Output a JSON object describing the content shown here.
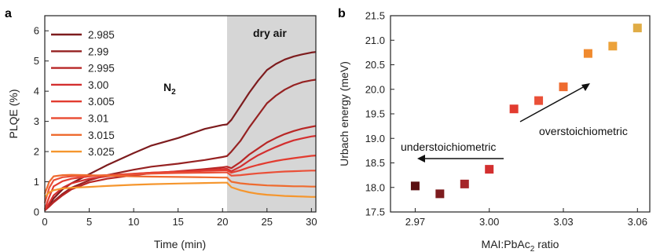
{
  "chart_data": [
    {
      "panel": "a",
      "type": "line",
      "xlabel": "Time (min)",
      "ylabel": "PLQE (%)",
      "xlim": [
        0,
        30.5
      ],
      "ylim": [
        0,
        6.5
      ],
      "xticks": [
        0,
        5,
        10,
        15,
        20,
        25,
        30
      ],
      "yticks": [
        0,
        1,
        2,
        3,
        4,
        5,
        6
      ],
      "shaded_region": {
        "x": [
          20.5,
          30.5
        ],
        "label": "dry air"
      },
      "annotations": [
        {
          "text": "N",
          "sub": "2"
        }
      ],
      "legend_position": "top-left",
      "x": [
        0,
        0.5,
        1,
        2,
        3,
        5,
        7,
        10,
        12,
        15,
        18,
        20,
        20.5,
        21,
        22,
        23,
        24,
        25,
        26,
        27,
        28,
        29,
        30,
        30.5
      ],
      "series": [
        {
          "name": "2.985",
          "color": "#7d1c1e",
          "values": [
            0.05,
            0.25,
            0.45,
            0.75,
            0.95,
            1.25,
            1.55,
            1.95,
            2.2,
            2.45,
            2.75,
            2.88,
            2.9,
            3.05,
            3.5,
            3.95,
            4.35,
            4.7,
            4.9,
            5.05,
            5.15,
            5.22,
            5.28,
            5.3
          ]
        },
        {
          "name": "2.99",
          "color": "#962222",
          "values": [
            0.05,
            0.2,
            0.35,
            0.6,
            0.8,
            1.05,
            1.22,
            1.4,
            1.5,
            1.6,
            1.72,
            1.82,
            1.85,
            2.0,
            2.35,
            2.8,
            3.2,
            3.6,
            3.85,
            4.05,
            4.2,
            4.3,
            4.36,
            4.38
          ]
        },
        {
          "name": "2.995",
          "color": "#b82726",
          "values": [
            0.05,
            0.18,
            0.32,
            0.55,
            0.75,
            0.98,
            1.1,
            1.22,
            1.28,
            1.35,
            1.42,
            1.48,
            1.5,
            1.45,
            1.65,
            1.9,
            2.1,
            2.3,
            2.45,
            2.58,
            2.68,
            2.76,
            2.82,
            2.85
          ]
        },
        {
          "name": "3.00",
          "color": "#d32f2f",
          "values": [
            0.05,
            0.3,
            0.55,
            0.8,
            0.95,
            1.1,
            1.18,
            1.26,
            1.3,
            1.34,
            1.38,
            1.42,
            1.43,
            1.35,
            1.5,
            1.7,
            1.88,
            2.02,
            2.15,
            2.27,
            2.37,
            2.44,
            2.5,
            2.52
          ]
        },
        {
          "name": "3.005",
          "color": "#e23b2f",
          "values": [
            0.1,
            0.5,
            0.85,
            1.02,
            1.1,
            1.18,
            1.22,
            1.27,
            1.3,
            1.33,
            1.36,
            1.38,
            1.38,
            1.3,
            1.38,
            1.48,
            1.56,
            1.63,
            1.69,
            1.74,
            1.78,
            1.82,
            1.86,
            1.87
          ]
        },
        {
          "name": "3.01",
          "color": "#ea5038",
          "values": [
            0.3,
            0.8,
            1.05,
            1.15,
            1.18,
            1.2,
            1.22,
            1.25,
            1.27,
            1.29,
            1.3,
            1.31,
            1.31,
            1.2,
            1.22,
            1.25,
            1.28,
            1.3,
            1.32,
            1.34,
            1.35,
            1.36,
            1.37,
            1.37
          ]
        },
        {
          "name": "3.015",
          "color": "#ee6b2f",
          "values": [
            0.6,
            1.0,
            1.18,
            1.22,
            1.23,
            1.22,
            1.2,
            1.18,
            1.17,
            1.16,
            1.15,
            1.14,
            1.14,
            1.0,
            0.95,
            0.92,
            0.9,
            0.88,
            0.87,
            0.86,
            0.85,
            0.85,
            0.84,
            0.84
          ]
        },
        {
          "name": "3.025",
          "color": "#f5962e",
          "values": [
            0.5,
            0.65,
            0.72,
            0.78,
            0.8,
            0.83,
            0.86,
            0.9,
            0.92,
            0.94,
            0.96,
            0.97,
            0.97,
            0.82,
            0.72,
            0.65,
            0.6,
            0.57,
            0.55,
            0.53,
            0.52,
            0.51,
            0.5,
            0.5
          ]
        }
      ]
    },
    {
      "panel": "b",
      "type": "scatter",
      "xlabel": "MAI:PbAc",
      "xlabel_sub": "2",
      "xlabel_tail": " ratio",
      "ylabel": "Urbach energy (meV)",
      "xlim": [
        2.96,
        3.065
      ],
      "ylim": [
        17.5,
        21.5
      ],
      "xticks": [
        "2.97",
        "3.00",
        "3.03",
        "3.06"
      ],
      "yticks": [
        "17.5",
        "18.0",
        "18.5",
        "19.0",
        "19.5",
        "20.0",
        "20.5",
        "21.0",
        "21.5"
      ],
      "annotations": [
        "understoichiometric",
        "overstoichiometric"
      ],
      "points": [
        {
          "x": 2.97,
          "y": 18.03,
          "color": "#5a1012"
        },
        {
          "x": 2.98,
          "y": 17.87,
          "color": "#7d1c1e"
        },
        {
          "x": 2.99,
          "y": 18.07,
          "color": "#a52529"
        },
        {
          "x": 3.0,
          "y": 18.37,
          "color": "#d32f2f"
        },
        {
          "x": 3.01,
          "y": 19.6,
          "color": "#e23b2f"
        },
        {
          "x": 3.02,
          "y": 19.77,
          "color": "#ea5038"
        },
        {
          "x": 3.03,
          "y": 20.05,
          "color": "#ee6b2f"
        },
        {
          "x": 3.04,
          "y": 20.73,
          "color": "#f08a2e"
        },
        {
          "x": 3.05,
          "y": 20.88,
          "color": "#eca23a"
        },
        {
          "x": 3.06,
          "y": 21.25,
          "color": "#e0ac45"
        }
      ]
    }
  ],
  "labels": {
    "a": "a",
    "b": "b"
  }
}
